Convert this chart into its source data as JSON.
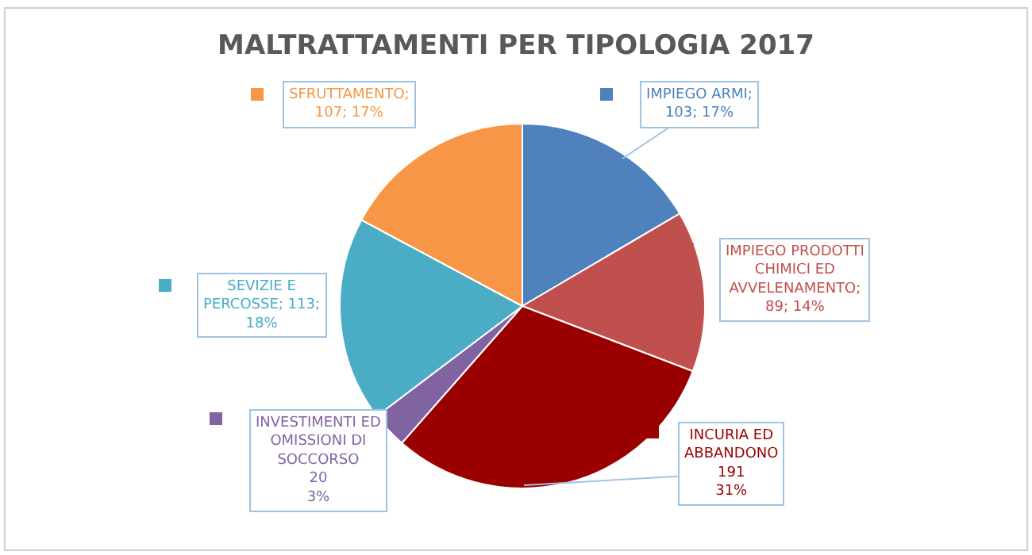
{
  "chart_data": {
    "type": "pie",
    "title": "MALTRATTAMENTI PER TIPOLOGIA 2017",
    "categories": [
      "IMPIEGO ARMI",
      "IMPIEGO PRODOTTI CHIMICI ED AVVELENAMENTO",
      "INCURIA ED ABBANDONO",
      "INVESTIMENTI ED OMISSIONI DI SOCCORSO",
      "SEVIZIE E PERCOSSE",
      "SFRUTTAMENTO"
    ],
    "values": [
      103,
      89,
      191,
      20,
      113,
      107
    ],
    "colors": [
      "#4f81bd",
      "#c0504d",
      "#9b0000",
      "#8064a2",
      "#4bacc6",
      "#f79646"
    ],
    "value_labels": [
      "; 103; 17%",
      "; 89; 14%",
      "191\n31%",
      "20\n3%",
      "; 113; 18%",
      "; 107; 17%"
    ],
    "legend": true
  }
}
